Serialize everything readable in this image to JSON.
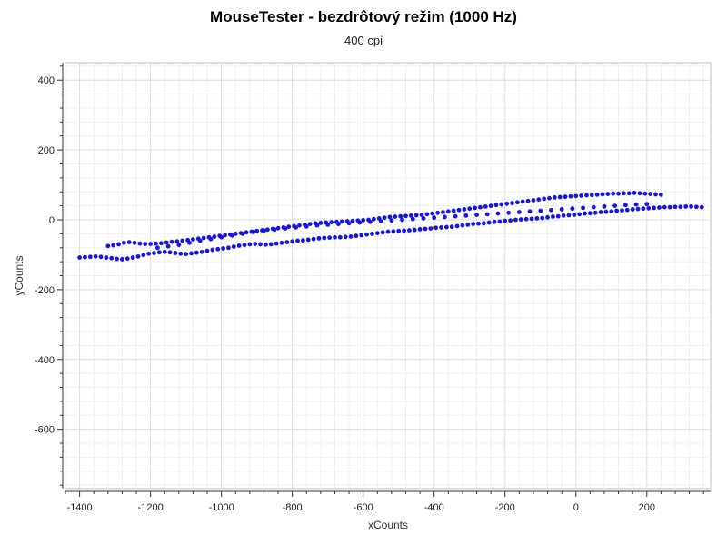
{
  "chart_data": {
    "type": "scatter",
    "title": "MouseTester - bezdrôtový režim (1000 Hz)",
    "subtitle": "400 cpi",
    "xlabel": "xCounts",
    "ylabel": "yCounts",
    "xlim": [
      -1440,
      380
    ],
    "ylim": [
      -770,
      450
    ],
    "xticks": [
      -1400,
      -1200,
      -1000,
      -800,
      -600,
      -400,
      -200,
      0,
      200
    ],
    "yticks": [
      400,
      200,
      0,
      -200,
      -400,
      -600
    ],
    "grid": true,
    "marker_color": "#1515e6",
    "series": [
      {
        "name": "",
        "points": [
          [
            -1400,
            -108
          ],
          [
            -1385,
            -107
          ],
          [
            -1370,
            -106
          ],
          [
            -1355,
            -105
          ],
          [
            -1340,
            -106
          ],
          [
            -1325,
            -108
          ],
          [
            -1310,
            -110
          ],
          [
            -1295,
            -112
          ],
          [
            -1280,
            -113
          ],
          [
            -1265,
            -111
          ],
          [
            -1250,
            -108
          ],
          [
            -1235,
            -105
          ],
          [
            -1220,
            -101
          ],
          [
            -1205,
            -97
          ],
          [
            -1190,
            -95
          ],
          [
            -1175,
            -93
          ],
          [
            -1160,
            -92
          ],
          [
            -1145,
            -93
          ],
          [
            -1130,
            -95
          ],
          [
            -1115,
            -97
          ],
          [
            -1100,
            -98
          ],
          [
            -1085,
            -96
          ],
          [
            -1070,
            -94
          ],
          [
            -1055,
            -92
          ],
          [
            -1040,
            -89
          ],
          [
            -1025,
            -86
          ],
          [
            -1010,
            -84
          ],
          [
            -995,
            -82
          ],
          [
            -980,
            -80
          ],
          [
            -965,
            -77
          ],
          [
            -950,
            -74
          ],
          [
            -935,
            -72
          ],
          [
            -920,
            -70
          ],
          [
            -905,
            -69
          ],
          [
            -890,
            -70
          ],
          [
            -875,
            -71
          ],
          [
            -860,
            -70
          ],
          [
            -845,
            -68
          ],
          [
            -830,
            -66
          ],
          [
            -815,
            -64
          ],
          [
            -800,
            -62
          ],
          [
            -785,
            -60
          ],
          [
            -770,
            -59
          ],
          [
            -755,
            -57
          ],
          [
            -740,
            -55
          ],
          [
            -725,
            -53
          ],
          [
            -710,
            -52
          ],
          [
            -695,
            -51
          ],
          [
            -680,
            -50
          ],
          [
            -665,
            -50
          ],
          [
            -650,
            -49
          ],
          [
            -635,
            -48
          ],
          [
            -620,
            -46
          ],
          [
            -605,
            -44
          ],
          [
            -590,
            -42
          ],
          [
            -575,
            -40
          ],
          [
            -560,
            -38
          ],
          [
            -545,
            -36
          ],
          [
            -530,
            -34
          ],
          [
            -515,
            -33
          ],
          [
            -500,
            -32
          ],
          [
            -485,
            -31
          ],
          [
            -470,
            -30
          ],
          [
            -455,
            -29
          ],
          [
            -440,
            -27
          ],
          [
            -425,
            -26
          ],
          [
            -410,
            -25
          ],
          [
            -395,
            -23
          ],
          [
            -380,
            -22
          ],
          [
            -365,
            -21
          ],
          [
            -350,
            -20
          ],
          [
            -335,
            -18
          ],
          [
            -320,
            -16
          ],
          [
            -305,
            -14
          ],
          [
            -290,
            -12
          ],
          [
            -275,
            -11
          ],
          [
            -260,
            -10
          ],
          [
            -245,
            -8
          ],
          [
            -230,
            -6
          ],
          [
            -215,
            -5
          ],
          [
            -200,
            -3
          ],
          [
            -185,
            -2
          ],
          [
            -170,
            0
          ],
          [
            -155,
            1
          ],
          [
            -140,
            2
          ],
          [
            -125,
            3
          ],
          [
            -110,
            4
          ],
          [
            -95,
            5
          ],
          [
            -80,
            7
          ],
          [
            -65,
            9
          ],
          [
            -50,
            10
          ],
          [
            -35,
            12
          ],
          [
            -20,
            13
          ],
          [
            -5,
            14
          ],
          [
            10,
            16
          ],
          [
            25,
            18
          ],
          [
            40,
            19
          ],
          [
            55,
            20
          ],
          [
            70,
            22
          ],
          [
            85,
            23
          ],
          [
            100,
            24
          ],
          [
            115,
            26
          ],
          [
            130,
            27
          ],
          [
            145,
            28
          ],
          [
            160,
            30
          ],
          [
            175,
            31
          ],
          [
            190,
            32
          ],
          [
            205,
            33
          ],
          [
            220,
            34
          ],
          [
            235,
            35
          ],
          [
            250,
            36
          ],
          [
            265,
            36
          ],
          [
            280,
            37
          ],
          [
            295,
            37
          ],
          [
            310,
            38
          ],
          [
            325,
            38
          ],
          [
            340,
            37
          ],
          [
            355,
            36
          ],
          [
            -1320,
            -75
          ],
          [
            -1305,
            -73
          ],
          [
            -1290,
            -70
          ],
          [
            -1275,
            -66
          ],
          [
            -1260,
            -64
          ],
          [
            -1245,
            -66
          ],
          [
            -1230,
            -68
          ],
          [
            -1215,
            -69
          ],
          [
            -1200,
            -69
          ],
          [
            -1185,
            -68
          ],
          [
            -1170,
            -67
          ],
          [
            -1155,
            -65
          ],
          [
            -1140,
            -63
          ],
          [
            -1125,
            -62
          ],
          [
            -1110,
            -60
          ],
          [
            -1095,
            -58
          ],
          [
            -1080,
            -56
          ],
          [
            -1065,
            -54
          ],
          [
            -1050,
            -52
          ],
          [
            -1035,
            -50
          ],
          [
            -1020,
            -48
          ],
          [
            -1005,
            -46
          ],
          [
            -990,
            -44
          ],
          [
            -975,
            -42
          ],
          [
            -960,
            -40
          ],
          [
            -945,
            -38
          ],
          [
            -930,
            -36
          ],
          [
            -915,
            -34
          ],
          [
            -900,
            -32
          ],
          [
            -885,
            -30
          ],
          [
            -870,
            -28
          ],
          [
            -855,
            -26
          ],
          [
            -840,
            -24
          ],
          [
            -825,
            -22
          ],
          [
            -810,
            -20
          ],
          [
            -795,
            -18
          ],
          [
            -780,
            -16
          ],
          [
            -765,
            -14
          ],
          [
            -750,
            -12
          ],
          [
            -735,
            -10
          ],
          [
            -720,
            -9
          ],
          [
            -705,
            -8
          ],
          [
            -690,
            -7
          ],
          [
            -675,
            -6
          ],
          [
            -660,
            -5
          ],
          [
            -645,
            -4
          ],
          [
            -630,
            -3
          ],
          [
            -615,
            -2
          ],
          [
            -600,
            -1
          ],
          [
            -585,
            0
          ],
          [
            -570,
            2
          ],
          [
            -555,
            4
          ],
          [
            -540,
            6
          ],
          [
            -525,
            8
          ],
          [
            -510,
            9
          ],
          [
            -495,
            10
          ],
          [
            -480,
            11
          ],
          [
            -465,
            12
          ],
          [
            -450,
            13
          ],
          [
            -435,
            14
          ],
          [
            -420,
            16
          ],
          [
            -405,
            18
          ],
          [
            -390,
            20
          ],
          [
            -375,
            22
          ],
          [
            -360,
            24
          ],
          [
            -345,
            26
          ],
          [
            -330,
            28
          ],
          [
            -315,
            30
          ],
          [
            -300,
            32
          ],
          [
            -285,
            34
          ],
          [
            -270,
            36
          ],
          [
            -255,
            38
          ],
          [
            -240,
            40
          ],
          [
            -225,
            42
          ],
          [
            -210,
            44
          ],
          [
            -195,
            46
          ],
          [
            -180,
            48
          ],
          [
            -165,
            50
          ],
          [
            -150,
            52
          ],
          [
            -135,
            54
          ],
          [
            -120,
            56
          ],
          [
            -105,
            58
          ],
          [
            -90,
            60
          ],
          [
            -75,
            62
          ],
          [
            -60,
            64
          ],
          [
            -45,
            65
          ],
          [
            -30,
            66
          ],
          [
            -15,
            67
          ],
          [
            0,
            68
          ],
          [
            15,
            69
          ],
          [
            30,
            70
          ],
          [
            45,
            71
          ],
          [
            60,
            72
          ],
          [
            75,
            73
          ],
          [
            90,
            74
          ],
          [
            105,
            75
          ],
          [
            120,
            75
          ],
          [
            135,
            76
          ],
          [
            150,
            76
          ],
          [
            165,
            77
          ],
          [
            180,
            76
          ],
          [
            195,
            75
          ],
          [
            210,
            74
          ],
          [
            225,
            73
          ],
          [
            240,
            72
          ],
          [
            -1180,
            -80
          ],
          [
            -1150,
            -76
          ],
          [
            -1120,
            -72
          ],
          [
            -1090,
            -66
          ],
          [
            -1060,
            -60
          ],
          [
            -1030,
            -55
          ],
          [
            -1000,
            -50
          ],
          [
            -970,
            -45
          ],
          [
            -940,
            -40
          ],
          [
            -910,
            -35
          ],
          [
            -880,
            -31
          ],
          [
            -850,
            -28
          ],
          [
            -820,
            -25
          ],
          [
            -790,
            -22
          ],
          [
            -760,
            -19
          ],
          [
            -730,
            -16
          ],
          [
            -700,
            -14
          ],
          [
            -670,
            -12
          ],
          [
            -640,
            -10
          ],
          [
            -610,
            -8
          ],
          [
            -580,
            -6
          ],
          [
            -550,
            -4
          ],
          [
            -520,
            -2
          ],
          [
            -490,
            0
          ],
          [
            -460,
            2
          ],
          [
            -430,
            4
          ],
          [
            -400,
            6
          ],
          [
            -370,
            8
          ],
          [
            -340,
            10
          ],
          [
            -310,
            12
          ],
          [
            -280,
            14
          ],
          [
            -250,
            16
          ],
          [
            -220,
            18
          ],
          [
            -190,
            20
          ],
          [
            -160,
            22
          ],
          [
            -130,
            24
          ],
          [
            -100,
            26
          ],
          [
            -70,
            28
          ],
          [
            -40,
            30
          ],
          [
            -10,
            32
          ],
          [
            20,
            34
          ],
          [
            50,
            36
          ],
          [
            80,
            38
          ],
          [
            110,
            40
          ],
          [
            140,
            42
          ],
          [
            170,
            44
          ],
          [
            200,
            45
          ]
        ]
      }
    ]
  }
}
